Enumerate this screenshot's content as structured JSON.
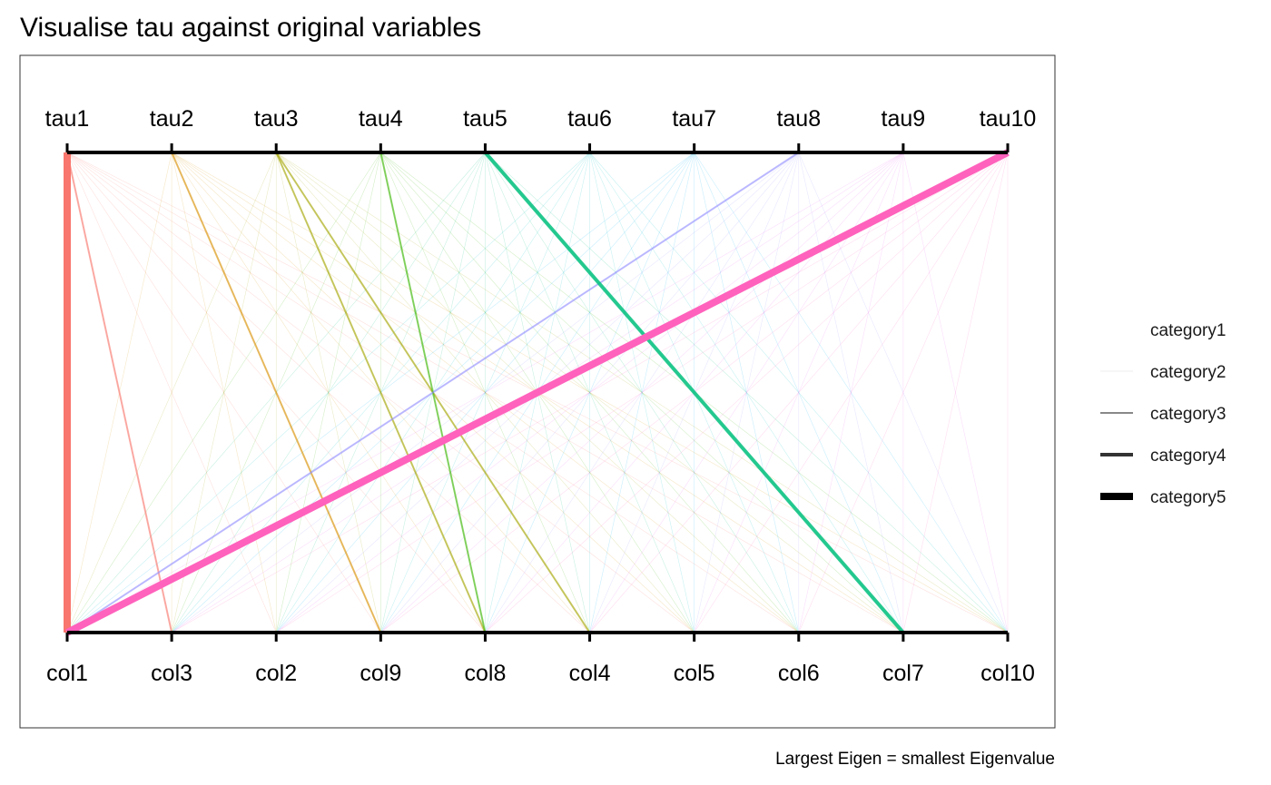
{
  "chart_data": {
    "type": "parallel-bipartite",
    "title": "Visualise tau against original variables",
    "caption": "Largest Eigen = smallest Eigenvalue",
    "top_axis_labels": [
      "tau1",
      "tau2",
      "tau3",
      "tau4",
      "tau5",
      "tau6",
      "tau7",
      "tau8",
      "tau9",
      "tau10"
    ],
    "bottom_axis_labels": [
      "col1",
      "col3",
      "col2",
      "col9",
      "col8",
      "col4",
      "col5",
      "col6",
      "col7",
      "col10"
    ],
    "tau_colors": [
      "#F8766D",
      "#D89000",
      "#A3A500",
      "#39B600",
      "#00BF7D",
      "#00BFC4",
      "#00B0F6",
      "#9590FF",
      "#E76BF3",
      "#FF62BC"
    ],
    "legend": {
      "title": "",
      "placement": "right",
      "items": [
        "category1",
        "category2",
        "category3",
        "category4",
        "category5"
      ],
      "widths": [
        0,
        0.6,
        2,
        4,
        8
      ],
      "colors": [
        "#ffffff",
        "#dddddd",
        "#888888",
        "#333333",
        "#000000"
      ]
    },
    "highlight_links": [
      {
        "tau": "tau1",
        "col": "col1",
        "category": "category5"
      },
      {
        "tau": "tau1",
        "col": "col3",
        "category": "category3"
      },
      {
        "tau": "tau2",
        "col": "col9",
        "category": "category3"
      },
      {
        "tau": "tau3",
        "col": "col8",
        "category": "category3"
      },
      {
        "tau": "tau3",
        "col": "col4",
        "category": "category3"
      },
      {
        "tau": "tau4",
        "col": "col8",
        "category": "category3"
      },
      {
        "tau": "tau5",
        "col": "col7",
        "category": "category4"
      },
      {
        "tau": "tau8",
        "col": "col1",
        "category": "category3"
      },
      {
        "tau": "tau10",
        "col": "col1",
        "category": "category5"
      }
    ],
    "background_link_category": "category2"
  }
}
